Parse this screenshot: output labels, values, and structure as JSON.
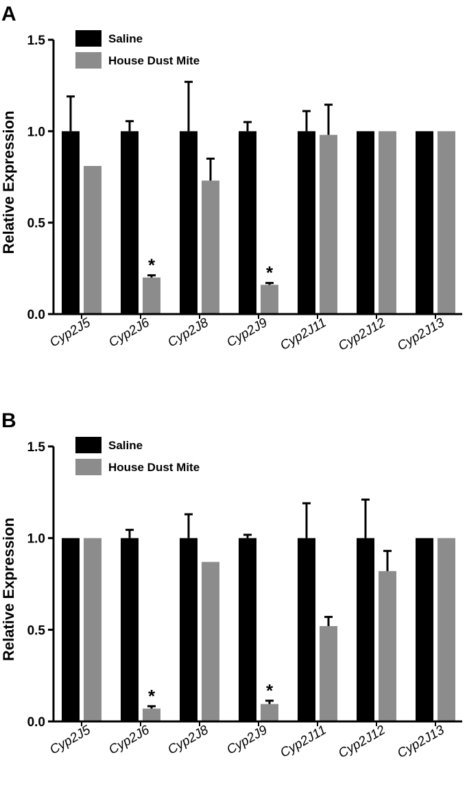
{
  "figure": {
    "colors": {
      "saline": "#000000",
      "hdm": "#8c8c8c",
      "axis": "#000000"
    }
  },
  "chart_data": [
    {
      "panel": "A",
      "type": "bar",
      "ylabel": "Relative Expression",
      "xlabel": "",
      "ylim": [
        0,
        1.5
      ],
      "yticks": [
        "0.0",
        "0.5",
        "1.0",
        "1.5"
      ],
      "categories": [
        "Cyp2J5",
        "Cyp2J6",
        "Cyp2J8",
        "Cyp2J9",
        "Cyp2J11",
        "Cyp2J12",
        "Cyp2J13"
      ],
      "series": [
        {
          "name": "Saline",
          "color": "#000000",
          "values": [
            1.0,
            1.0,
            1.0,
            1.0,
            1.0,
            1.0,
            1.0
          ],
          "errors": [
            0.19,
            0.055,
            0.27,
            0.05,
            0.11,
            0,
            0
          ]
        },
        {
          "name": "House Dust Mite",
          "color": "#8c8c8c",
          "values": [
            0.81,
            0.2,
            0.73,
            0.16,
            0.98,
            1.0,
            1.0
          ],
          "errors": [
            0,
            0.012,
            0.12,
            0.01,
            0.165,
            0,
            0
          ]
        }
      ],
      "significance": [
        "",
        "*",
        "",
        "*",
        "",
        "",
        ""
      ],
      "legend": "top-left"
    },
    {
      "panel": "B",
      "type": "bar",
      "ylabel": "Relative Expression",
      "xlabel": "",
      "ylim": [
        0,
        1.5
      ],
      "yticks": [
        "0.0",
        "0.5",
        "1.0",
        "1.5"
      ],
      "categories": [
        "Cyp2J5",
        "Cyp2J6",
        "Cyp2J8",
        "Cyp2J9",
        "Cyp2J11",
        "Cyp2J12",
        "Cyp2J13"
      ],
      "series": [
        {
          "name": "Saline",
          "color": "#000000",
          "values": [
            1.0,
            1.0,
            1.0,
            1.0,
            1.0,
            1.0,
            1.0
          ],
          "errors": [
            0,
            0.045,
            0.13,
            0.018,
            0.19,
            0.21,
            0
          ]
        },
        {
          "name": "House Dust Mite",
          "color": "#8c8c8c",
          "values": [
            1.0,
            0.07,
            0.87,
            0.095,
            0.52,
            0.82,
            1.0
          ],
          "errors": [
            0,
            0.013,
            0,
            0.018,
            0.05,
            0.11,
            0
          ]
        }
      ],
      "significance": [
        "",
        "*",
        "",
        "*",
        "",
        "",
        ""
      ],
      "legend": "top-left"
    }
  ]
}
